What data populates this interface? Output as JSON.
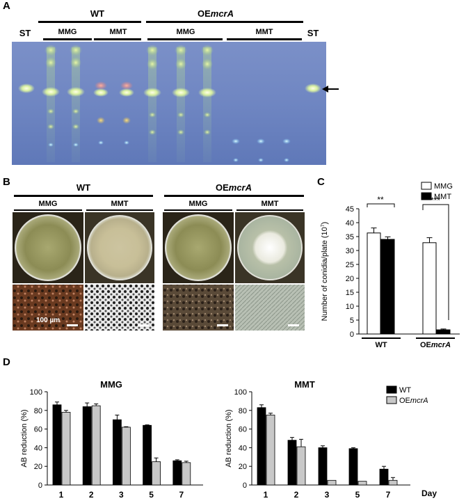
{
  "panels": {
    "a": "A",
    "b": "B",
    "c": "C",
    "d": "D"
  },
  "panelA": {
    "st_left": "ST",
    "st_right": "ST",
    "wt": "WT",
    "oe_prefix": "OE",
    "oe_gene": "mcrA",
    "groups": [
      "MMG",
      "MMT",
      "MMG",
      "MMT"
    ]
  },
  "panelB": {
    "wt": "WT",
    "oe_prefix": "OE",
    "oe_gene": "mcrA",
    "conditions": [
      "MMG",
      "MMT",
      "MMG",
      "MMT"
    ],
    "scale_bar": "100 µm"
  },
  "panelC": {
    "legend": [
      "MMG",
      "MMT"
    ],
    "ylabel": "Number of conidia/plate (10",
    "ylabel_exp": "7",
    "ylabel_end": ")",
    "sig": [
      "**",
      "***"
    ],
    "groups": [
      "WT",
      "OE"
    ],
    "group_gene": "mcrA"
  },
  "chart_data": [
    {
      "type": "bar",
      "title": "",
      "categories": [
        "WT",
        "OEmcrA"
      ],
      "series": [
        {
          "name": "MMG",
          "values": [
            36.3,
            32.8
          ],
          "errors": [
            1.8,
            1.8
          ],
          "color": "#ffffff"
        },
        {
          "name": "MMT",
          "values": [
            34.0,
            1.5
          ],
          "errors": [
            0.9,
            0.3
          ],
          "color": "#000000"
        }
      ],
      "ylim": [
        0,
        45
      ],
      "yticks": [
        0,
        5,
        10,
        15,
        20,
        25,
        30,
        35,
        40,
        45
      ],
      "significance": [
        "**",
        "***"
      ]
    },
    {
      "type": "bar",
      "title": "MMG",
      "ylabel": "AB reduction (%)",
      "categories": [
        "1",
        "2",
        "3",
        "5",
        "7"
      ],
      "series": [
        {
          "name": "WT",
          "values": [
            86,
            84,
            70,
            64,
            26
          ],
          "errors": [
            3,
            4,
            5,
            0.5,
            1
          ],
          "color": "#000000"
        },
        {
          "name": "OEmcrA",
          "values": [
            78,
            85,
            62,
            25,
            24
          ],
          "errors": [
            2,
            2,
            0.5,
            4,
            1.5
          ],
          "color": "#c8c8c8"
        }
      ],
      "ylim": [
        0,
        100
      ],
      "yticks": [
        0,
        20,
        40,
        60,
        80,
        100
      ]
    },
    {
      "type": "bar",
      "title": "MMT",
      "ylabel": "AB reduction (%)",
      "xlabel": "Day",
      "categories": [
        "1",
        "2",
        "3",
        "5",
        "7"
      ],
      "series": [
        {
          "name": "WT",
          "values": [
            83,
            48,
            40,
            39,
            17
          ],
          "errors": [
            3,
            3,
            2,
            1,
            3
          ],
          "color": "#000000"
        },
        {
          "name": "OEmcrA",
          "values": [
            75,
            41,
            5,
            4,
            5
          ],
          "errors": [
            2,
            8,
            0,
            0,
            3
          ],
          "color": "#c8c8c8"
        }
      ],
      "ylim": [
        0,
        100
      ],
      "yticks": [
        0,
        20,
        40,
        60,
        80,
        100
      ]
    }
  ],
  "panelD": {
    "legend": [
      "WT",
      "OE"
    ],
    "legend_gene": "mcrA",
    "xlabel": "Day"
  }
}
